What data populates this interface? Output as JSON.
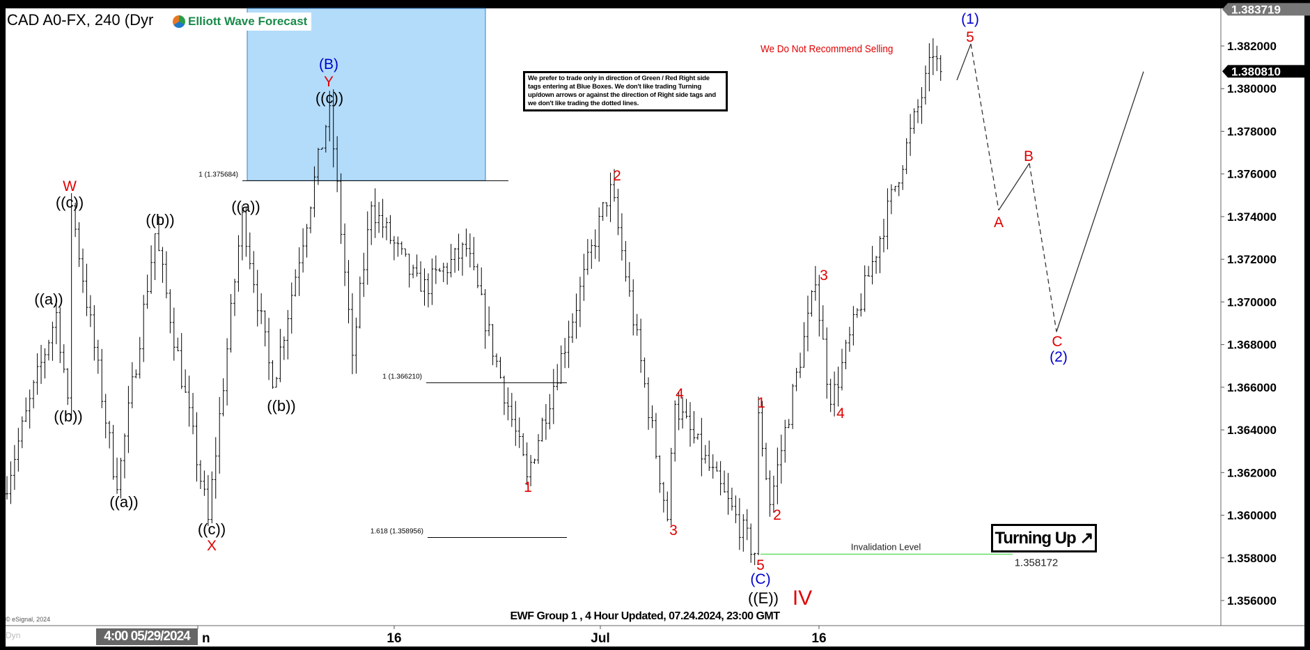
{
  "header": {
    "symbol_title": "CAD A0-FX, 240 (Dyr",
    "logo_text": "Elliott Wave Forecast"
  },
  "notice": "We prefer to trade only in direction of Green / Red Right side tags entering at Blue Boxes. We don't like trading Turning up/down arrows or against the direction of Right side tags and we don't like trading the dotted lines.",
  "warning": "We Do Not Recommend Selling",
  "turning_up": {
    "label": "Turning Up",
    "icon": "arrow-up-right-icon"
  },
  "footer": {
    "caption": "EWF Group 1 , 4 Hour Updated, 07.24.2024, 23:00 GMT",
    "copyright": "© eSignal, 2024",
    "dyn": "Dyn",
    "cursor_time": "4:00 05/29/2024"
  },
  "colors": {
    "red": "#e00000",
    "blue": "#0000cc",
    "blue_box": "#b3dcfa",
    "invalidation": "#66dd66"
  },
  "chart_data": {
    "type": "ohlc-bar",
    "timeframe": "240",
    "y_ticks": [
      "1.382000",
      "1.380000",
      "1.378000",
      "1.376000",
      "1.374000",
      "1.372000",
      "1.370000",
      "1.368000",
      "1.366000",
      "1.364000",
      "1.362000",
      "1.360000",
      "1.358000",
      "1.356000"
    ],
    "ylim": [
      1.3545,
      1.384
    ],
    "x_ticks": [
      "n",
      "16",
      "Jul",
      "16"
    ],
    "price_high_tag": "1.383719",
    "last_price_tag": "1.380810",
    "price_path": [
      [
        0,
        1.361
      ],
      [
        14,
        1.3695
      ],
      [
        17,
        1.3655
      ],
      [
        18,
        1.3745
      ],
      [
        30,
        1.3612
      ],
      [
        40,
        1.3732
      ],
      [
        54,
        1.3598
      ],
      [
        63,
        1.3742
      ],
      [
        71,
        1.366
      ],
      [
        86,
        1.3792
      ],
      [
        92,
        1.3675
      ],
      [
        97,
        1.3745
      ],
      [
        110,
        1.3705
      ],
      [
        122,
        1.3725
      ],
      [
        138,
        1.3618
      ],
      [
        160,
        1.3755
      ],
      [
        175,
        1.3598
      ],
      [
        177,
        1.3652
      ],
      [
        198,
        1.3582
      ],
      [
        199,
        1.3648
      ],
      [
        202,
        1.3605
      ],
      [
        214,
        1.3708
      ],
      [
        218,
        1.3652
      ],
      [
        245,
        1.3815
      ],
      [
        247,
        1.3808
      ]
    ],
    "projection": [
      [
        "5",
        1.3821
      ],
      [
        "A",
        1.3743
      ],
      [
        "B",
        1.3765
      ],
      [
        "C",
        1.3686
      ],
      [
        "",
        1.3808
      ]
    ],
    "fib_levels": [
      {
        "label": "1 (1.375684)",
        "value": 1.375684
      },
      {
        "label": "1 (1.366210)",
        "value": 1.36621
      },
      {
        "label": "1.618 (1.358956)",
        "value": 1.358956
      }
    ],
    "invalidation": {
      "label": "Invalidation Level",
      "value": "1.358172"
    },
    "blue_box": {
      "from": 1.375684,
      "to": 1.384
    },
    "wave_labels": [
      "W",
      "((c))",
      "((a))",
      "((b))",
      "((a))",
      "((b))",
      "((c))",
      "X",
      "((a))",
      "((b))",
      "(B)",
      "Y",
      "((c))",
      "1",
      "2",
      "3",
      "4",
      "1",
      "2",
      "5",
      "(C)",
      "((E))",
      "IV",
      "3",
      "4",
      "5",
      "(1)",
      "B",
      "A",
      "C",
      "(2)"
    ]
  }
}
